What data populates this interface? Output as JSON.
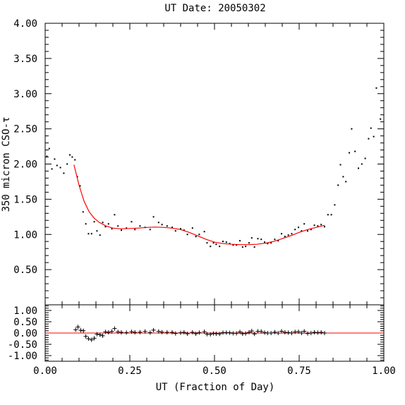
{
  "chart_data": [
    {
      "type": "scatter",
      "title": "UT Date: 20050302",
      "ylabel": "350 micron CSO-τ",
      "xlim": [
        0.0,
        1.0
      ],
      "ylim": [
        0.0,
        4.0
      ],
      "grid": false,
      "y_ticks": [
        "0.50",
        "1.00",
        "1.50",
        "2.00",
        "2.50",
        "3.00",
        "3.50",
        "4.00"
      ],
      "series": [
        {
          "marker": "dot",
          "color": "#000000",
          "points": [
            [
              0.005,
              2.11
            ],
            [
              0.012,
              2.22
            ],
            [
              0.02,
              1.93
            ],
            [
              0.028,
              2.07
            ],
            [
              0.035,
              1.98
            ],
            [
              0.045,
              1.95
            ],
            [
              0.055,
              1.87
            ],
            [
              0.065,
              2.0
            ],
            [
              0.073,
              2.13
            ],
            [
              0.08,
              2.1
            ],
            [
              0.088,
              2.06
            ],
            [
              0.095,
              1.82
            ],
            [
              0.103,
              1.69
            ],
            [
              0.112,
              1.32
            ],
            [
              0.12,
              1.15
            ],
            [
              0.128,
              1.01
            ],
            [
              0.137,
              1.01
            ],
            [
              0.145,
              1.18
            ],
            [
              0.153,
              1.05
            ],
            [
              0.162,
              0.99
            ],
            [
              0.17,
              1.17
            ],
            [
              0.178,
              1.11
            ],
            [
              0.187,
              1.15
            ],
            [
              0.197,
              1.08
            ],
            [
              0.205,
              1.28
            ],
            [
              0.215,
              1.12
            ],
            [
              0.225,
              1.06
            ],
            [
              0.24,
              1.09
            ],
            [
              0.255,
              1.18
            ],
            [
              0.265,
              1.07
            ],
            [
              0.28,
              1.12
            ],
            [
              0.295,
              1.1
            ],
            [
              0.31,
              1.07
            ],
            [
              0.32,
              1.25
            ],
            [
              0.335,
              1.17
            ],
            [
              0.345,
              1.14
            ],
            [
              0.36,
              1.12
            ],
            [
              0.375,
              1.1
            ],
            [
              0.385,
              1.05
            ],
            [
              0.4,
              1.08
            ],
            [
              0.41,
              1.06
            ],
            [
              0.42,
              1.0
            ],
            [
              0.435,
              1.09
            ],
            [
              0.445,
              0.97
            ],
            [
              0.455,
              1.0
            ],
            [
              0.47,
              1.04
            ],
            [
              0.478,
              0.88
            ],
            [
              0.488,
              0.83
            ],
            [
              0.497,
              0.88
            ],
            [
              0.505,
              0.86
            ],
            [
              0.515,
              0.83
            ],
            [
              0.525,
              0.9
            ],
            [
              0.535,
              0.89
            ],
            [
              0.545,
              0.87
            ],
            [
              0.555,
              0.85
            ],
            [
              0.565,
              0.85
            ],
            [
              0.575,
              0.91
            ],
            [
              0.583,
              0.82
            ],
            [
              0.592,
              0.83
            ],
            [
              0.602,
              0.88
            ],
            [
              0.61,
              0.95
            ],
            [
              0.618,
              0.82
            ],
            [
              0.628,
              0.94
            ],
            [
              0.638,
              0.93
            ],
            [
              0.648,
              0.89
            ],
            [
              0.657,
              0.87
            ],
            [
              0.667,
              0.88
            ],
            [
              0.678,
              0.93
            ],
            [
              0.688,
              0.91
            ],
            [
              0.698,
              1.01
            ],
            [
              0.708,
              0.97
            ],
            [
              0.718,
              0.99
            ],
            [
              0.728,
              1.01
            ],
            [
              0.738,
              1.07
            ],
            [
              0.748,
              1.1
            ],
            [
              0.757,
              1.05
            ],
            [
              0.765,
              1.15
            ],
            [
              0.775,
              1.05
            ],
            [
              0.785,
              1.07
            ],
            [
              0.795,
              1.13
            ],
            [
              0.805,
              1.12
            ],
            [
              0.815,
              1.14
            ],
            [
              0.825,
              1.11
            ],
            [
              0.835,
              1.28
            ],
            [
              0.845,
              1.28
            ],
            [
              0.855,
              1.42
            ],
            [
              0.865,
              1.7
            ],
            [
              0.872,
              1.99
            ],
            [
              0.88,
              1.82
            ],
            [
              0.888,
              1.75
            ],
            [
              0.898,
              2.16
            ],
            [
              0.905,
              2.5
            ],
            [
              0.915,
              2.18
            ],
            [
              0.925,
              1.94
            ],
            [
              0.935,
              2.0
            ],
            [
              0.945,
              2.08
            ],
            [
              0.955,
              2.36
            ],
            [
              0.962,
              2.51
            ],
            [
              0.97,
              2.39
            ],
            [
              0.978,
              3.08
            ],
            [
              0.99,
              2.64
            ]
          ]
        },
        {
          "name": "fit",
          "type": "line",
          "color": "#ff0000",
          "points": [
            [
              0.085,
              1.99
            ],
            [
              0.1,
              1.7
            ],
            [
              0.115,
              1.47
            ],
            [
              0.13,
              1.32
            ],
            [
              0.145,
              1.23
            ],
            [
              0.16,
              1.17
            ],
            [
              0.18,
              1.12
            ],
            [
              0.2,
              1.09
            ],
            [
              0.225,
              1.08
            ],
            [
              0.25,
              1.085
            ],
            [
              0.275,
              1.09
            ],
            [
              0.3,
              1.1
            ],
            [
              0.325,
              1.105
            ],
            [
              0.35,
              1.1
            ],
            [
              0.375,
              1.09
            ],
            [
              0.4,
              1.07
            ],
            [
              0.425,
              1.03
            ],
            [
              0.45,
              0.98
            ],
            [
              0.475,
              0.93
            ],
            [
              0.5,
              0.89
            ],
            [
              0.525,
              0.87
            ],
            [
              0.55,
              0.86
            ],
            [
              0.575,
              0.855
            ],
            [
              0.6,
              0.855
            ],
            [
              0.625,
              0.86
            ],
            [
              0.65,
              0.875
            ],
            [
              0.675,
              0.9
            ],
            [
              0.7,
              0.94
            ],
            [
              0.725,
              0.98
            ],
            [
              0.75,
              1.03
            ],
            [
              0.775,
              1.07
            ],
            [
              0.8,
              1.1
            ],
            [
              0.825,
              1.13
            ]
          ]
        }
      ]
    },
    {
      "type": "scatter",
      "xlabel": "UT (Fraction of Day)",
      "xlim": [
        0.0,
        1.0
      ],
      "ylim": [
        -1.25,
        1.25
      ],
      "x_ticks": [
        "0.00",
        "0.25",
        "0.50",
        "0.75",
        "1.00"
      ],
      "y_ticks": [
        "1.00",
        "0.50",
        "0.00",
        "-0.50",
        "-1.00"
      ],
      "series": [
        {
          "marker": "plus",
          "color": "#000000",
          "points": [
            [
              0.09,
              0.15
            ],
            [
              0.097,
              0.27
            ],
            [
              0.105,
              0.12
            ],
            [
              0.113,
              0.1
            ],
            [
              0.12,
              -0.15
            ],
            [
              0.128,
              -0.25
            ],
            [
              0.137,
              -0.3
            ],
            [
              0.145,
              -0.23
            ],
            [
              0.153,
              -0.05
            ],
            [
              0.162,
              -0.08
            ],
            [
              0.17,
              -0.12
            ],
            [
              0.178,
              0.05
            ],
            [
              0.187,
              0.03
            ],
            [
              0.197,
              0.07
            ],
            [
              0.205,
              0.2
            ],
            [
              0.215,
              0.05
            ],
            [
              0.225,
              0.03
            ],
            [
              0.24,
              0.02
            ],
            [
              0.255,
              0.06
            ],
            [
              0.265,
              0.03
            ],
            [
              0.28,
              0.04
            ],
            [
              0.295,
              0.07
            ],
            [
              0.31,
              0.02
            ],
            [
              0.32,
              0.13
            ],
            [
              0.335,
              0.07
            ],
            [
              0.345,
              0.04
            ],
            [
              0.36,
              0.03
            ],
            [
              0.375,
              0.03
            ],
            [
              0.385,
              -0.02
            ],
            [
              0.4,
              0.01
            ],
            [
              0.41,
              0.03
            ],
            [
              0.42,
              -0.03
            ],
            [
              0.435,
              0.03
            ],
            [
              0.445,
              -0.03
            ],
            [
              0.455,
              0.02
            ],
            [
              0.47,
              0.06
            ],
            [
              0.478,
              -0.05
            ],
            [
              0.488,
              -0.06
            ],
            [
              0.497,
              -0.02
            ],
            [
              0.505,
              -0.03
            ],
            [
              0.515,
              -0.04
            ],
            [
              0.525,
              0.02
            ],
            [
              0.535,
              0.02
            ],
            [
              0.545,
              0.01
            ],
            [
              0.555,
              -0.01
            ],
            [
              0.565,
              -0.01
            ],
            [
              0.575,
              0.05
            ],
            [
              0.583,
              -0.03
            ],
            [
              0.592,
              -0.02
            ],
            [
              0.602,
              0.03
            ],
            [
              0.61,
              0.09
            ],
            [
              0.618,
              -0.04
            ],
            [
              0.628,
              0.08
            ],
            [
              0.638,
              0.07
            ],
            [
              0.648,
              0.02
            ],
            [
              0.657,
              0.0
            ],
            [
              0.667,
              0.0
            ],
            [
              0.678,
              0.04
            ],
            [
              0.688,
              0.0
            ],
            [
              0.698,
              0.08
            ],
            [
              0.708,
              0.03
            ],
            [
              0.718,
              0.02
            ],
            [
              0.728,
              0.0
            ],
            [
              0.738,
              0.05
            ],
            [
              0.748,
              0.06
            ],
            [
              0.757,
              0.0
            ],
            [
              0.765,
              0.08
            ],
            [
              0.775,
              -0.02
            ],
            [
              0.785,
              0.0
            ],
            [
              0.795,
              0.03
            ],
            [
              0.805,
              0.02
            ],
            [
              0.815,
              0.03
            ],
            [
              0.825,
              0.0
            ]
          ]
        },
        {
          "name": "zero",
          "type": "line",
          "color": "#ff0000",
          "points": [
            [
              0.0,
              0.0
            ],
            [
              1.0,
              0.0
            ]
          ]
        }
      ]
    }
  ]
}
